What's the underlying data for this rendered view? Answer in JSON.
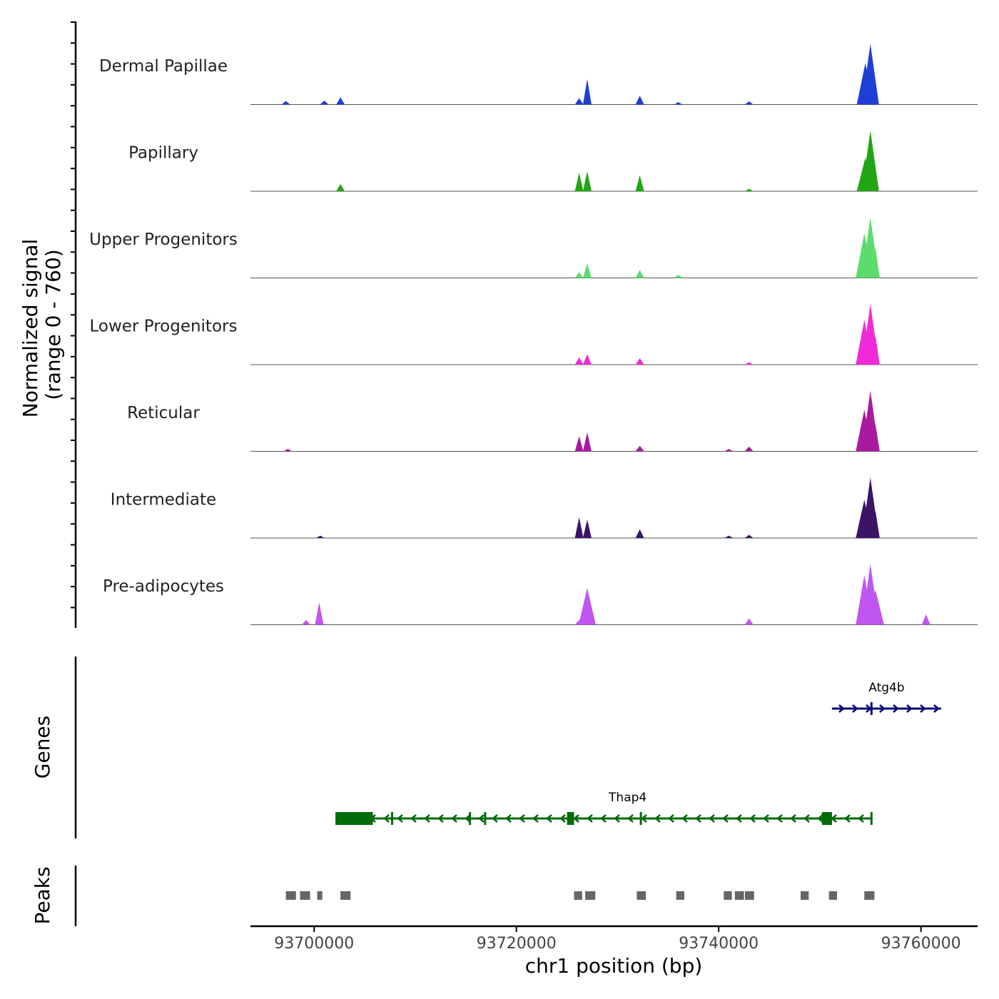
{
  "chart_data": {
    "type": "area",
    "title": "",
    "xlabel": "chr1 position (bp)",
    "ylabel_line1": "Normalized signal",
    "ylabel_line2": "(range 0 - 760)",
    "genes_label": "Genes",
    "peaks_label": "Peaks",
    "xlim": [
      93693700,
      93765600
    ],
    "ylim": [
      0,
      760
    ],
    "x_ticks": [
      93700000,
      93720000,
      93740000,
      93760000
    ],
    "x_tick_labels": [
      "93700000",
      "93720000",
      "93740000",
      "93760000"
    ],
    "series": [
      {
        "name": "Dermal Papillae",
        "color": "#1f3fd4",
        "peaks": [
          [
            93697200,
            45
          ],
          [
            93701000,
            50
          ],
          [
            93702600,
            90
          ],
          [
            93726200,
            80
          ],
          [
            93727000,
            320
          ],
          [
            93732200,
            110
          ],
          [
            93736000,
            30
          ],
          [
            93743000,
            40
          ],
          [
            93754500,
            520
          ],
          [
            93755000,
            760
          ],
          [
            93755400,
            380
          ]
        ]
      },
      {
        "name": "Papillary",
        "color": "#22a514",
        "peaks": [
          [
            93702600,
            90
          ],
          [
            93726200,
            230
          ],
          [
            93727000,
            250
          ],
          [
            93732200,
            200
          ],
          [
            93743000,
            30
          ],
          [
            93754500,
            420
          ],
          [
            93755000,
            760
          ],
          [
            93755400,
            360
          ]
        ]
      },
      {
        "name": "Upper Progenitors",
        "color": "#5cdc6c",
        "peaks": [
          [
            93726200,
            70
          ],
          [
            93727000,
            180
          ],
          [
            93732200,
            100
          ],
          [
            93736000,
            40
          ],
          [
            93754400,
            560
          ],
          [
            93755000,
            760
          ],
          [
            93755500,
            380
          ]
        ]
      },
      {
        "name": "Lower Progenitors",
        "color": "#f02ad8",
        "peaks": [
          [
            93726200,
            90
          ],
          [
            93727000,
            130
          ],
          [
            93732200,
            80
          ],
          [
            93743000,
            30
          ],
          [
            93754400,
            560
          ],
          [
            93755000,
            760
          ],
          [
            93755500,
            360
          ]
        ]
      },
      {
        "name": "Reticular",
        "color": "#a81a9e",
        "peaks": [
          [
            93697400,
            30
          ],
          [
            93726200,
            190
          ],
          [
            93727000,
            240
          ],
          [
            93732200,
            70
          ],
          [
            93741000,
            30
          ],
          [
            93743000,
            60
          ],
          [
            93754400,
            520
          ],
          [
            93755000,
            760
          ],
          [
            93755500,
            340
          ]
        ]
      },
      {
        "name": "Intermediate",
        "color": "#3c1466",
        "peaks": [
          [
            93700600,
            30
          ],
          [
            93726200,
            260
          ],
          [
            93727000,
            230
          ],
          [
            93732200,
            110
          ],
          [
            93741000,
            30
          ],
          [
            93743000,
            40
          ],
          [
            93754400,
            480
          ],
          [
            93755000,
            760
          ],
          [
            93755500,
            340
          ]
        ]
      },
      {
        "name": "Pre-adipocytes",
        "color": "#bf56f0",
        "peaks": [
          [
            93699200,
            60
          ],
          [
            93700500,
            280
          ],
          [
            93727000,
            460
          ],
          [
            93726200,
            60
          ],
          [
            93743000,
            80
          ],
          [
            93754400,
            620
          ],
          [
            93755000,
            760
          ],
          [
            93755500,
            440
          ],
          [
            93760500,
            130
          ]
        ]
      }
    ],
    "genes": [
      {
        "name": "Atg4b",
        "color": "#0a0a7a",
        "strand": "+",
        "start": 93751200,
        "end": 93762000,
        "exons": [
          [
            93755000,
            93755200
          ]
        ]
      },
      {
        "name": "Thap4",
        "color": "#036b0a",
        "strand": "-",
        "start": 93702100,
        "end": 93755200,
        "exons": [
          [
            93702100,
            93705800
          ],
          [
            93707600,
            93707700
          ],
          [
            93715300,
            93715400
          ],
          [
            93716800,
            93716900
          ],
          [
            93725000,
            93725700
          ],
          [
            93732200,
            93732300
          ],
          [
            93750200,
            93751200
          ],
          [
            93755000,
            93755200
          ]
        ]
      }
    ],
    "peaks": [
      [
        93697200,
        93698200
      ],
      [
        93698600,
        93699600
      ],
      [
        93700300,
        93700800
      ],
      [
        93702600,
        93703600
      ],
      [
        93725700,
        93726500
      ],
      [
        93726800,
        93727800
      ],
      [
        93731900,
        93732800
      ],
      [
        93735800,
        93736600
      ],
      [
        93740500,
        93741300
      ],
      [
        93741600,
        93742500
      ],
      [
        93742600,
        93743500
      ],
      [
        93748100,
        93748900
      ],
      [
        93750900,
        93751700
      ],
      [
        93754400,
        93755400
      ]
    ]
  }
}
